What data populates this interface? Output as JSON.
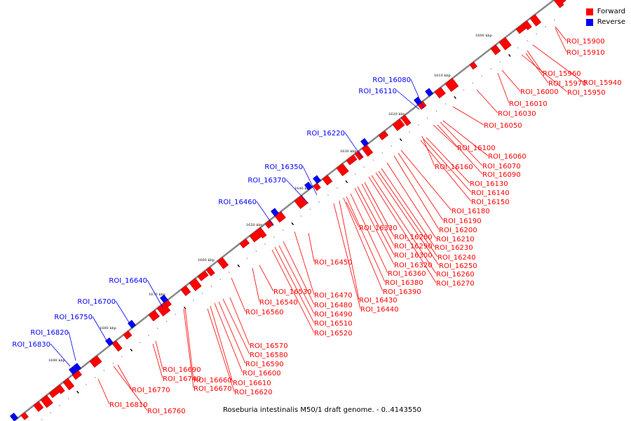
{
  "footer": "Roseburia intestinalis M50/1 draft genome. - 0..4143550",
  "legend": [
    {
      "label": "Forward",
      "color": "#ff0000"
    },
    {
      "label": "Reverse",
      "color": "#0000ff"
    }
  ],
  "colors": {
    "forward": "#ff0000",
    "reverse": "#0000ff",
    "backbone": "#888888"
  },
  "ticks": [
    "1600 kbp",
    "1610 kbp",
    "1620 kbp",
    "1630 kbp",
    "1640 kbp",
    "1650 kbp",
    "1660 kbp",
    "1670 kbp",
    "1680 kbp",
    "1690 kbp"
  ],
  "forward_labels": [
    "ROI_15900",
    "ROI_15910",
    "ROI_15960",
    "ROI_15940",
    "ROI_15970",
    "ROI_15950",
    "ROI_16000",
    "ROI_16010",
    "ROI_16030",
    "ROI_16050",
    "ROI_16100",
    "ROI_16060",
    "ROI_16070",
    "ROI_16160",
    "ROI_16090",
    "ROI_16130",
    "ROI_16140",
    "ROI_16150",
    "ROI_16180",
    "ROI_16190",
    "ROI_16200",
    "ROI_16330",
    "ROI_16210",
    "ROI_16280",
    "ROI_16230",
    "ROI_16290",
    "ROI_16240",
    "ROI_16300",
    "ROI_16250",
    "ROI_16320",
    "ROI_16260",
    "ROI_16450",
    "ROI_16360",
    "ROI_16270",
    "ROI_16380",
    "ROI_16530",
    "ROI_16470",
    "ROI_16390",
    "ROI_16540",
    "ROI_16480",
    "ROI_16430",
    "ROI_16560",
    "ROI_16490",
    "ROI_16440",
    "ROI_16510",
    "ROI_16520",
    "ROI_16570",
    "ROI_16580",
    "ROI_16590",
    "ROI_16600",
    "ROI_16690",
    "ROI_16740",
    "ROI_16660",
    "ROI_16610",
    "ROI_16670",
    "ROI_16620",
    "ROI_16770",
    "ROI_16810",
    "ROI_16760"
  ],
  "reverse_labels": [
    "ROI_16080",
    "ROI_16110",
    "ROI_16220",
    "ROI_16350",
    "ROI_16370",
    "ROI_16460",
    "ROI_16640",
    "ROI_16700",
    "ROI_16750",
    "ROI_16820",
    "ROI_16830"
  ]
}
